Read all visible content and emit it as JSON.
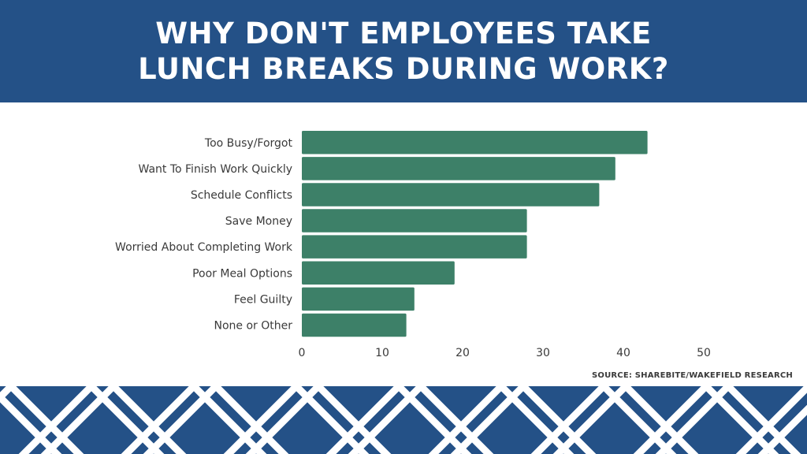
{
  "header": {
    "title_line1": "WHY DON'T EMPLOYEES TAKE",
    "title_line2": "LUNCH BREAKS DURING WORK?"
  },
  "colors": {
    "header_bg": "#245187",
    "bar": "#3d8068",
    "text": "#3a3a3a"
  },
  "chart_data": {
    "type": "bar",
    "orientation": "horizontal",
    "categories": [
      "Too Busy/Forgot",
      "Want To Finish Work Quickly",
      "Schedule Conflicts",
      "Save Money",
      "Worried About Completing Work",
      "Poor Meal Options",
      "Feel Guilty",
      "None or Other"
    ],
    "values": [
      43,
      39,
      37,
      28,
      28,
      19,
      14,
      13
    ],
    "xlim": [
      0,
      50
    ],
    "xticks": [
      0,
      10,
      20,
      30,
      40,
      50
    ],
    "grid": false,
    "legend": "none"
  },
  "source": "SOURCE: SHAREBITE/WAKEFIELD RESEARCH"
}
